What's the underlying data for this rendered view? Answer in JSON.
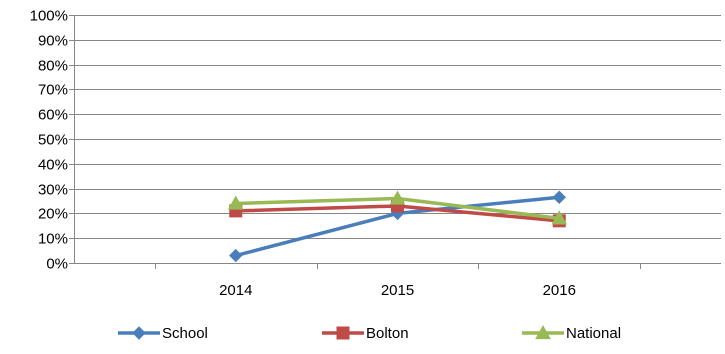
{
  "chart_data": {
    "type": "line",
    "title": "",
    "xlabel": "",
    "ylabel": "",
    "categories": [
      "2014",
      "2015",
      "2016"
    ],
    "ylim": [
      0,
      1
    ],
    "yticks": [
      0,
      0.1,
      0.2,
      0.3,
      0.4,
      0.5,
      0.6,
      0.7,
      0.8,
      0.9,
      1.0
    ],
    "ytick_labels": [
      "0%",
      "10%",
      "20%",
      "30%",
      "40%",
      "50%",
      "60%",
      "70%",
      "80%",
      "90%",
      "100%"
    ],
    "grid": true,
    "legend_position": "bottom",
    "series": [
      {
        "name": "School",
        "values": [
          0.03,
          0.2,
          0.265
        ],
        "color": "#4a7ebb",
        "marker": "diamond"
      },
      {
        "name": "Bolton",
        "values": [
          0.21,
          0.23,
          0.17
        ],
        "color": "#be4b48",
        "marker": "square"
      },
      {
        "name": "National",
        "values": [
          0.24,
          0.26,
          0.18
        ],
        "color": "#98b954",
        "marker": "triangle"
      }
    ]
  }
}
